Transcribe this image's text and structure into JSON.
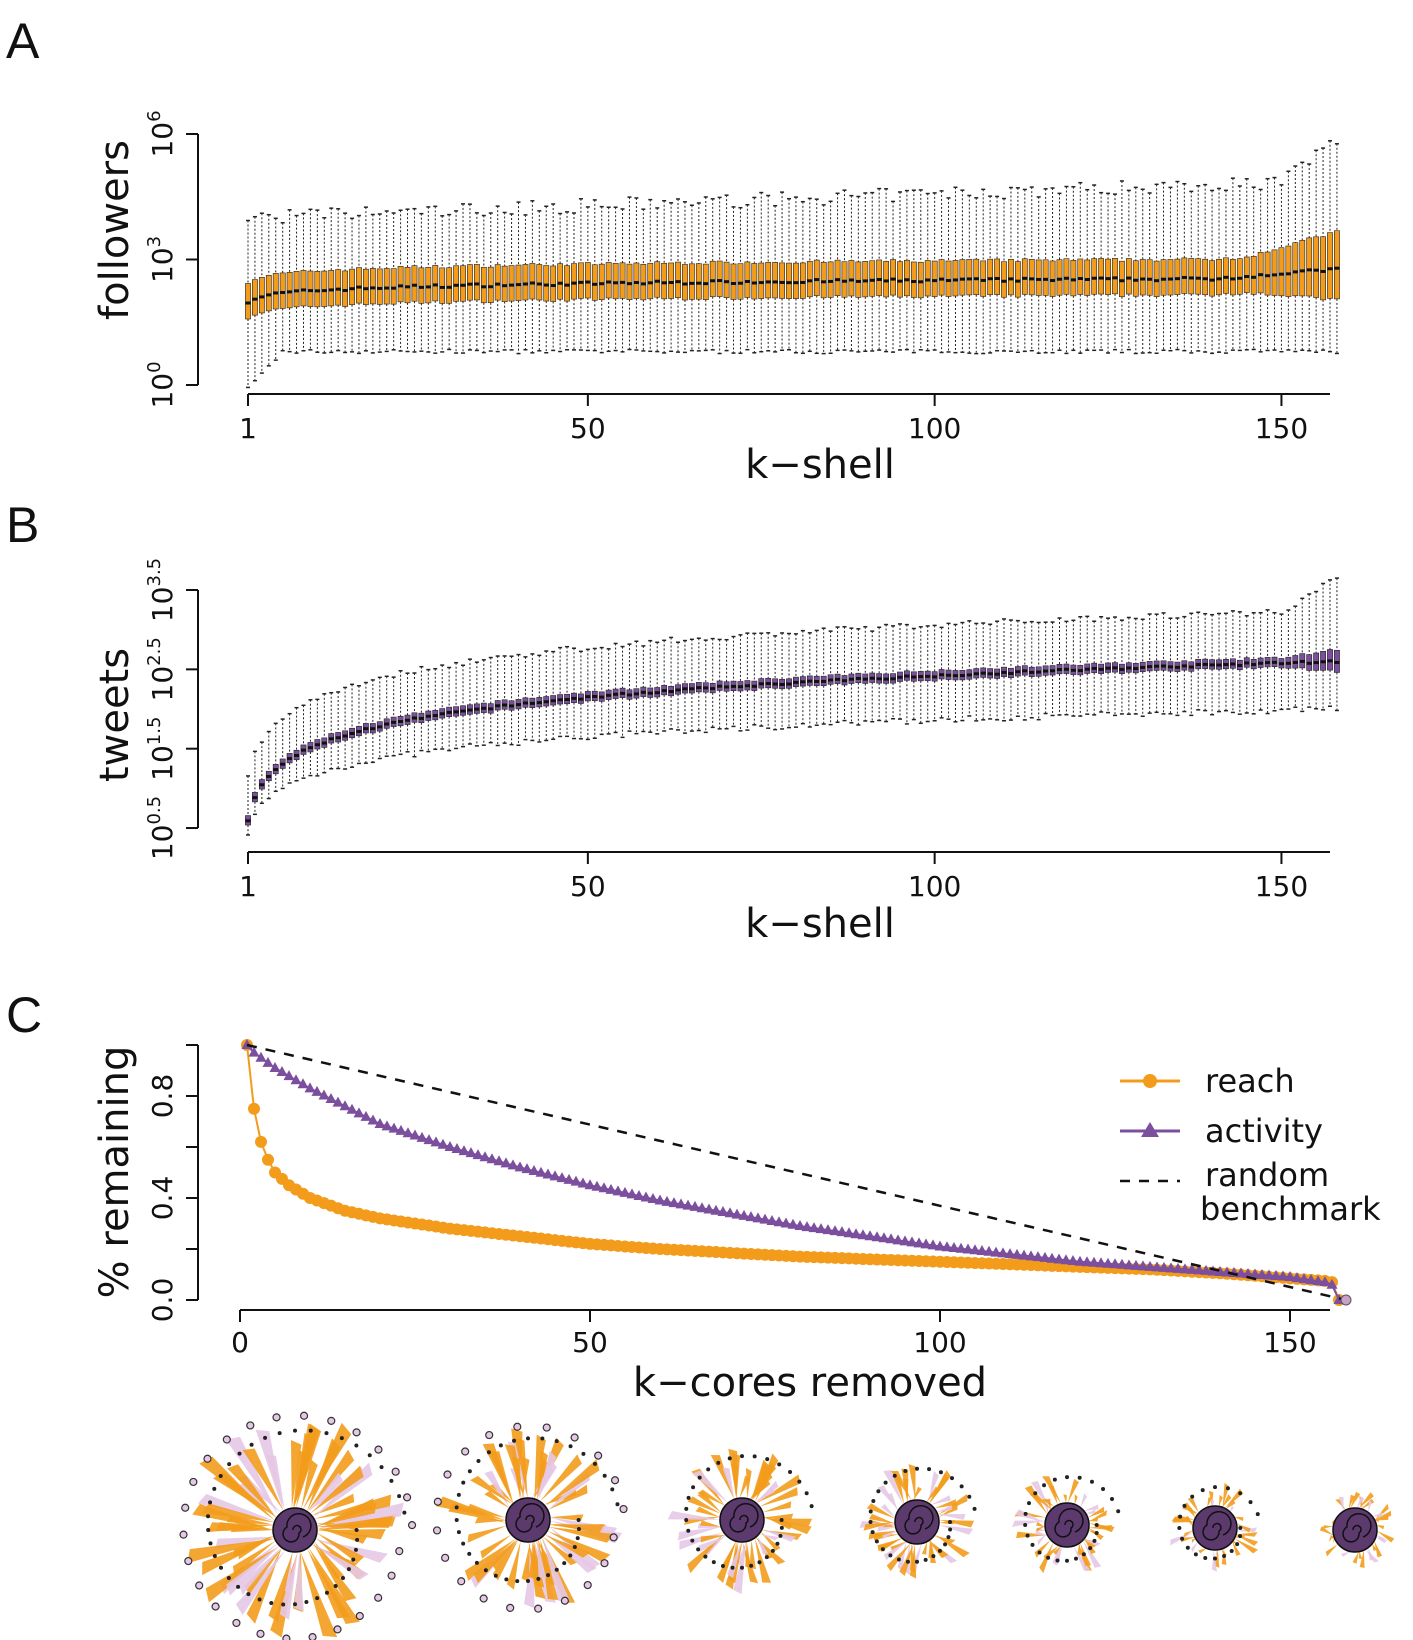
{
  "chart_data": [
    {
      "panel": "A",
      "type": "box",
      "xlabel": "k−shell",
      "ylabel": "followers",
      "xlim": [
        1,
        158
      ],
      "xticks": [
        1,
        50,
        100,
        150
      ],
      "ylim_log10": [
        0,
        6
      ],
      "yscale": "log10",
      "yticks": [
        {
          "base": "10",
          "exp": "0",
          "value": 1
        },
        {
          "base": "10",
          "exp": "3",
          "value": 1000
        },
        {
          "base": "10",
          "exp": "6",
          "value": 1000000
        }
      ],
      "box_color": "#f39c1c",
      "n_boxes": 158,
      "median_log10_first": 2.0,
      "median_log10_last": 2.75,
      "box_height_log10": 1.0,
      "whisker_low_log10": [
        -0.1,
        0.8
      ],
      "whisker_high_log10": [
        4.0,
        6.0
      ]
    },
    {
      "panel": "B",
      "type": "box",
      "xlabel": "k−shell",
      "ylabel": "tweets",
      "xlim": [
        1,
        158
      ],
      "xticks": [
        1,
        50,
        100,
        150
      ],
      "ylim_log10": [
        0.5,
        3.5
      ],
      "yscale": "log10",
      "yticks": [
        {
          "base": "10",
          "exp": "0.5",
          "value": 3.16
        },
        {
          "base": "10",
          "exp": "1.5",
          "value": 31.6
        },
        {
          "base": "10",
          "exp": "2.5",
          "value": 316
        },
        {
          "base": "10",
          "exp": "3.5",
          "value": 3162
        }
      ],
      "box_color": "#7b4f9e",
      "n_boxes": 158,
      "median_log10_first": 0.6,
      "median_log10_at_50": 2.0,
      "median_log10_at_100": 2.32,
      "median_log10_last": 2.6
    },
    {
      "panel": "C",
      "type": "line",
      "xlabel": "k−cores removed",
      "ylabel": "% remaining",
      "xlim": [
        0,
        158
      ],
      "ylim": [
        0,
        1
      ],
      "xticks": [
        0,
        50,
        100,
        150
      ],
      "yticks": [
        "0.0",
        "0.4",
        "0.8"
      ],
      "legend_position": "top-right",
      "series": [
        {
          "name": "reach",
          "color": "#f39c1c",
          "marker": "circle",
          "x": [
            1,
            2,
            3,
            4,
            5,
            7,
            10,
            15,
            20,
            30,
            40,
            50,
            60,
            70,
            80,
            90,
            100,
            110,
            120,
            130,
            140,
            150,
            155,
            156,
            157
          ],
          "y": [
            1.0,
            0.75,
            0.62,
            0.55,
            0.5,
            0.45,
            0.4,
            0.35,
            0.32,
            0.28,
            0.25,
            0.22,
            0.2,
            0.185,
            0.17,
            0.16,
            0.15,
            0.14,
            0.13,
            0.12,
            0.105,
            0.085,
            0.075,
            0.07,
            0.0
          ]
        },
        {
          "name": "activity",
          "color": "#7b4f9e",
          "marker": "triangle",
          "x": [
            1,
            2,
            5,
            10,
            15,
            20,
            30,
            40,
            50,
            60,
            70,
            80,
            90,
            100,
            110,
            120,
            130,
            140,
            150,
            155,
            156,
            157
          ],
          "y": [
            1.0,
            0.97,
            0.91,
            0.83,
            0.76,
            0.69,
            0.6,
            0.52,
            0.45,
            0.39,
            0.34,
            0.29,
            0.25,
            0.21,
            0.18,
            0.15,
            0.13,
            0.11,
            0.09,
            0.07,
            0.06,
            0.0
          ]
        },
        {
          "name": "random\nbenchmark",
          "color": "#111111",
          "marker": "none",
          "dashed": true,
          "x": [
            0,
            158
          ],
          "y": [
            1.0,
            0.0
          ]
        }
      ]
    }
  ],
  "panels": {
    "a": {
      "letter": "A"
    },
    "b": {
      "letter": "B"
    },
    "c": {
      "letter": "C"
    }
  },
  "legend": {
    "reach": "reach",
    "activity": "activity",
    "random_line1": "random",
    "random_line2": "benchmark"
  },
  "network_thumbnails": {
    "count": 7,
    "core_color": "#5c3a6e",
    "edge_color_primary": "#f39c1c",
    "edge_color_secondary": "#e6c8e6"
  }
}
